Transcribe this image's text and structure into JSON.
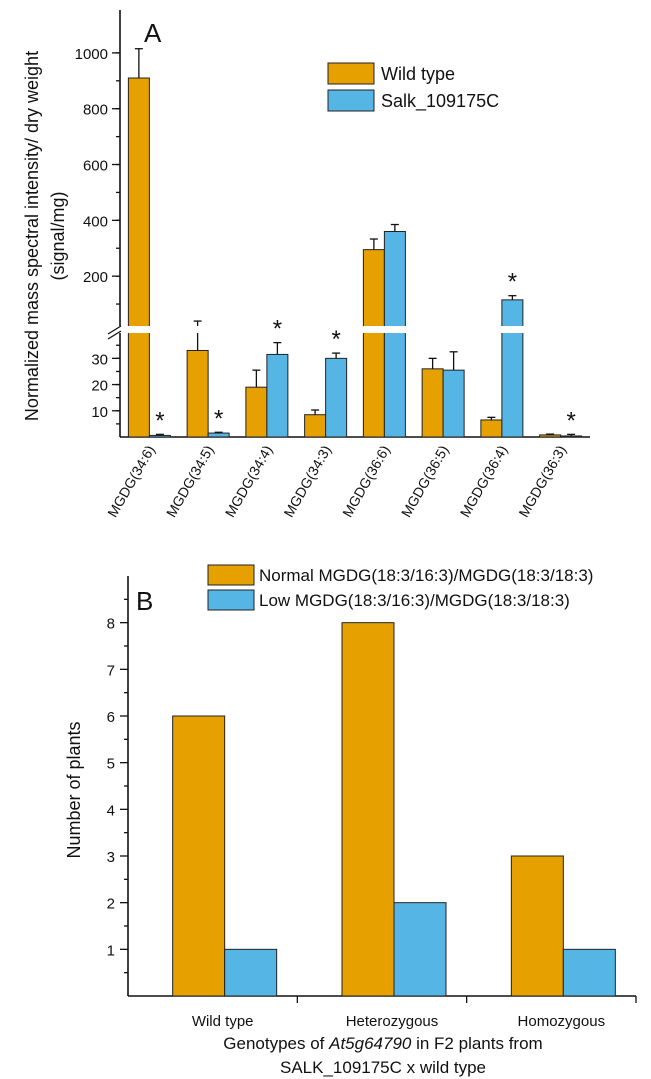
{
  "colors": {
    "orange": "#E6A000",
    "blue": "#55B6E6"
  },
  "chart_data": [
    {
      "type": "bar",
      "panel_label": "A",
      "ylabel": "Normalized mass spectral intensity/ dry weight (signal/mg)",
      "ylabel_lines": [
        "Normalized mass spectral intensity/ dry weight",
        "(signal/mg)"
      ],
      "categories": [
        "MGDG(34:6)",
        "MGDG(34:5)",
        "MGDG(34:4)",
        "MGDG(34:3)",
        "MGDG(36:6)",
        "MGDG(36:5)",
        "MGDG(36:4)",
        "MGDG(36:3)"
      ],
      "y_axis_break": {
        "lower_range": [
          0,
          37
        ],
        "upper_range": [
          50,
          1100
        ]
      },
      "lower_ticks": [
        10,
        20,
        30
      ],
      "upper_ticks": [
        200,
        400,
        600,
        800,
        1000
      ],
      "series": [
        {
          "name": "Wild type",
          "color": "#E6A000",
          "values": [
            910,
            33,
            19,
            8.5,
            295,
            26,
            6.5,
            0.8
          ],
          "errors": [
            105,
            6,
            6.5,
            1.8,
            38,
            4,
            1,
            0.3
          ]
        },
        {
          "name": "Salk_109175C",
          "color": "#55B6E6",
          "values": [
            0.6,
            1.5,
            31.5,
            30,
            360,
            25.5,
            115,
            0.4
          ],
          "errors": [
            0.4,
            0.3,
            4.5,
            2,
            25,
            7,
            15,
            0.6
          ]
        }
      ],
      "significance_marker": "*",
      "significant_categories": [
        "MGDG(34:6)",
        "MGDG(34:5)",
        "MGDG(34:4)",
        "MGDG(34:3)",
        "MGDG(36:4)",
        "MGDG(36:3)"
      ],
      "legend_position": "top-right"
    },
    {
      "type": "bar",
      "panel_label": "B",
      "ylabel": "Number of plants",
      "xlabel_parts": [
        "Genotypes of ",
        "At5g64790",
        " in F2 plants from"
      ],
      "xlabel_line2": "SALK_109175C x wild type",
      "categories": [
        "Wild type",
        "Heterozygous",
        "Homozygous"
      ],
      "ylim": [
        0,
        9
      ],
      "y_ticks": [
        1,
        2,
        3,
        4,
        5,
        6,
        7,
        8
      ],
      "series": [
        {
          "name": "Normal MGDG(18:3/16:3)/MGDG(18:3/18:3)",
          "color": "#E6A000",
          "values": [
            6,
            8,
            3
          ]
        },
        {
          "name": "Low MGDG(18:3/16:3)/MGDG(18:3/18:3)",
          "color": "#55B6E6",
          "values": [
            1,
            2,
            1
          ]
        }
      ],
      "legend_position": "top"
    }
  ]
}
